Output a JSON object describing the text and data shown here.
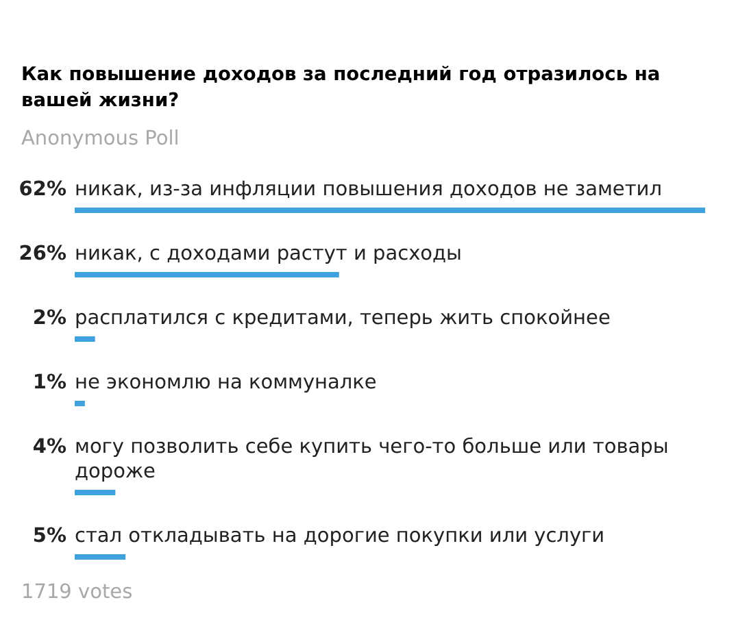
{
  "chart_data": {
    "type": "bar",
    "orientation": "horizontal",
    "title": "Как повышение доходов за последний год отразилось на вашей жизни?",
    "subtitle": "Anonymous Poll",
    "categories": [
      "никак, из-за инфляции повышения доходов не заметил",
      "никак, с доходами растут и расходы",
      "расплатился с кредитами, теперь жить спокойнее",
      "не экономлю на коммуналке",
      "могу позволить себе купить чего-то больше или товары дороже",
      "стал откладывать на дорогие покупки или услуги"
    ],
    "values": [
      62,
      26,
      2,
      1,
      4,
      5
    ],
    "value_labels": [
      "62%",
      "26%",
      "2%",
      "1%",
      "4%",
      "5%"
    ],
    "color": "#3fa1dd",
    "xlim": [
      0,
      62
    ],
    "annotations": [
      "1719 votes"
    ]
  }
}
